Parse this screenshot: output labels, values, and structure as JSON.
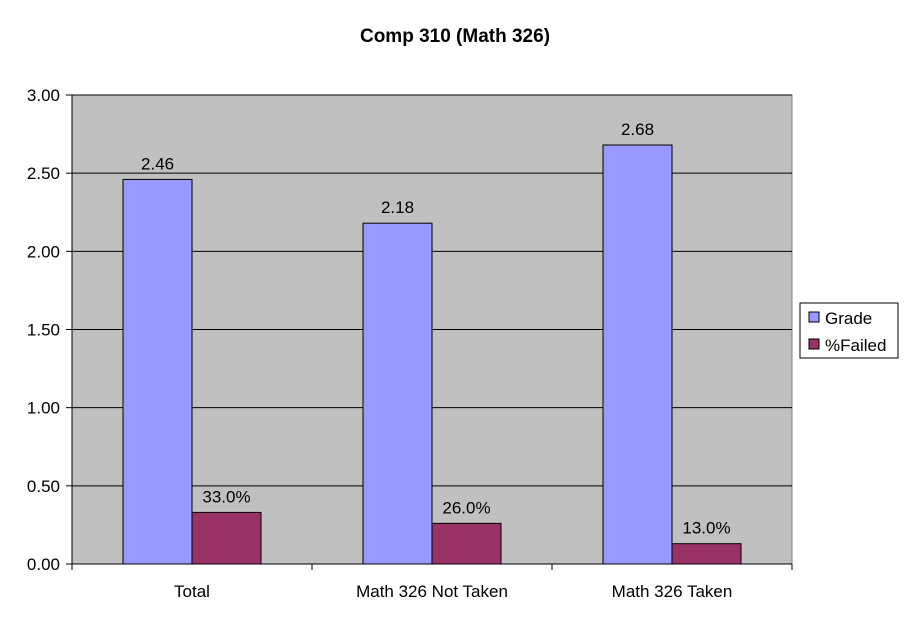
{
  "chart_data": {
    "type": "bar",
    "title": "Comp 310 (Math 326)",
    "xlabel": "",
    "ylabel": "",
    "categories": [
      "Total",
      "Math 326 Not Taken",
      "Math 326 Taken"
    ],
    "series": [
      {
        "name": "Grade",
        "values": [
          2.46,
          2.18,
          2.68
        ],
        "labels": [
          "2.46",
          "2.18",
          "2.68"
        ],
        "color": "#9999ff"
      },
      {
        "name": "%Failed",
        "values": [
          0.33,
          0.26,
          0.13
        ],
        "labels": [
          "33.0%",
          "26.0%",
          "13.0%"
        ],
        "color": "#993366"
      }
    ],
    "ylim": [
      0,
      3
    ],
    "yticks": [
      "0.00",
      "0.50",
      "1.00",
      "1.50",
      "2.00",
      "2.50",
      "3.00"
    ],
    "grid": true,
    "legend": "right",
    "plot_background": "#c0c0c0"
  }
}
